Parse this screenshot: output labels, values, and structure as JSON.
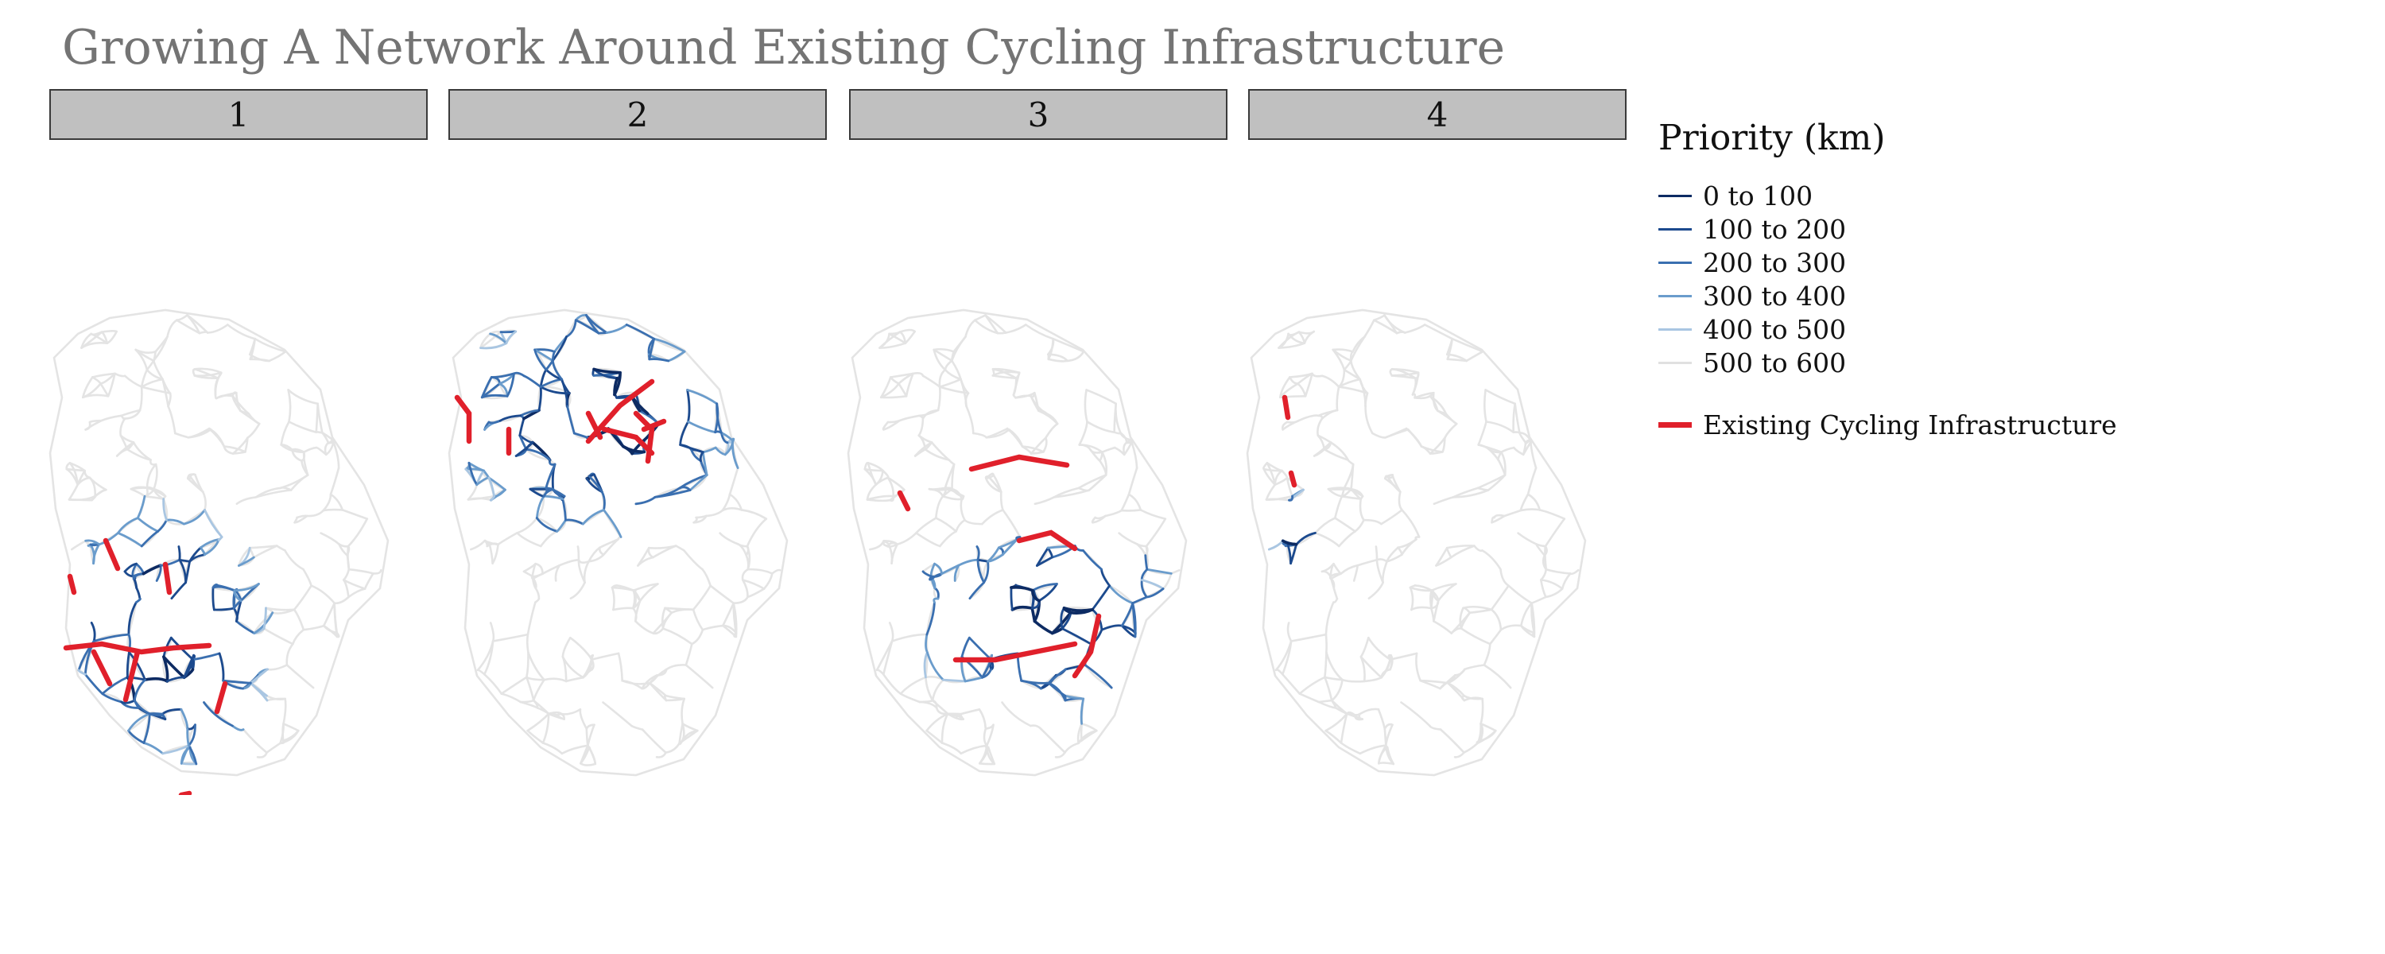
{
  "title": "Growing A Network Around Existing Cycling Infrastructure",
  "facets": [
    {
      "label": "1",
      "priority_region": "south-west"
    },
    {
      "label": "2",
      "priority_region": "north"
    },
    {
      "label": "3",
      "priority_region": "south-east"
    },
    {
      "label": "4",
      "priority_region": "west-small"
    }
  ],
  "legend": {
    "title": "Priority (km)",
    "items": [
      {
        "label": "0 to 100",
        "color": "#0d2b63"
      },
      {
        "label": "100 to 200",
        "color": "#1c4a8e"
      },
      {
        "label": "200 to 300",
        "color": "#3a6fb0"
      },
      {
        "label": "300 to 400",
        "color": "#6a9ccc"
      },
      {
        "label": "400 to 500",
        "color": "#a9c6e2"
      },
      {
        "label": "500 to 600",
        "color": "#e0e0e0"
      }
    ],
    "infrastructure": {
      "label": "Existing Cycling Infrastructure",
      "color": "#e0202b"
    }
  },
  "colors": {
    "base_network": "#e4e4e4",
    "infrastructure": "#e0202b"
  }
}
